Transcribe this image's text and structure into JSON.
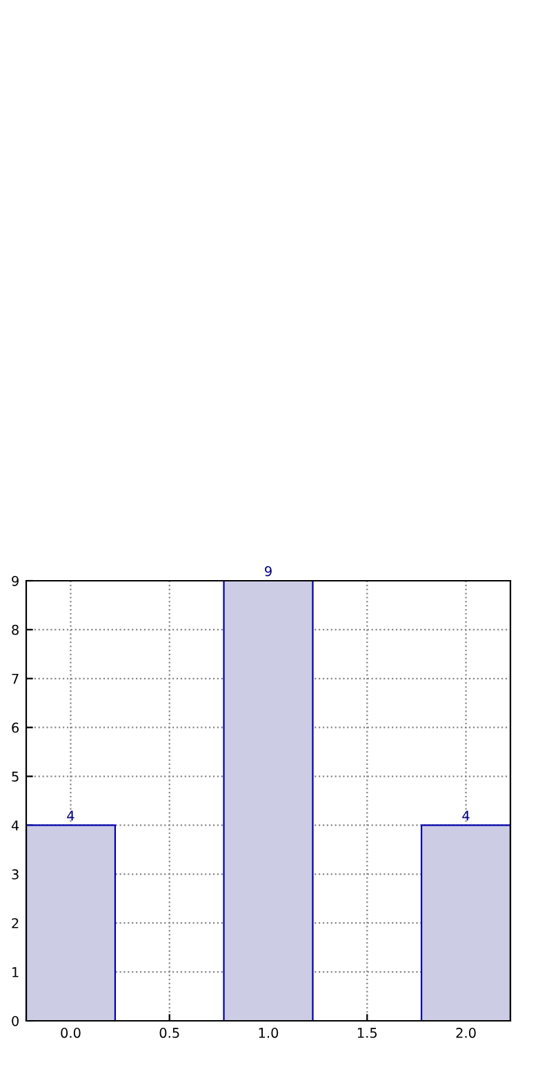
{
  "chart_data": {
    "type": "bar",
    "x": [
      0,
      1,
      2
    ],
    "values": [
      4,
      9,
      4
    ],
    "color": "#ccccE5",
    "xlim": [
      -0.225,
      2.225
    ],
    "ylim": [
      0,
      9
    ],
    "xticks": [
      {
        "value": 0,
        "label": "0.0"
      },
      {
        "value": 0.5,
        "label": "0.5"
      },
      {
        "value": 1,
        "label": "1.0"
      },
      {
        "value": 1.5,
        "label": "1.5"
      },
      {
        "value": 2,
        "label": "2.0"
      }
    ],
    "yticks": [
      0,
      1,
      2,
      3,
      4,
      5,
      6,
      7,
      8,
      9
    ],
    "grid": true,
    "data_labels": true
  }
}
